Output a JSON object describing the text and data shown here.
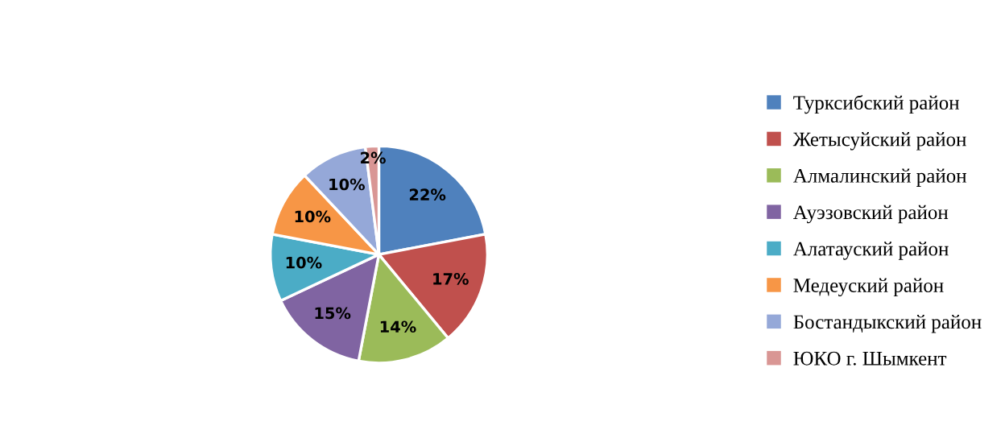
{
  "chart_data": {
    "type": "pie",
    "categories": [
      "Турксибский район",
      "Жетысуйский район",
      "Алмалинский район",
      "Ауэзовский район",
      "Алатауский район",
      "Медеуский район",
      "Бостандыкский район",
      "ЮКО г. Шымкент"
    ],
    "values": [
      22,
      17,
      14,
      15,
      10,
      10,
      10,
      2
    ],
    "colors": [
      "#4f81bd",
      "#c0504d",
      "#9bbb59",
      "#8064a2",
      "#4bacc6",
      "#f79646",
      "#95a8d8",
      "#d99694"
    ],
    "value_labels": [
      "22%",
      "17%",
      "14%",
      "15%",
      "10%",
      "10%",
      "10%",
      "2%"
    ],
    "legend": "right"
  }
}
